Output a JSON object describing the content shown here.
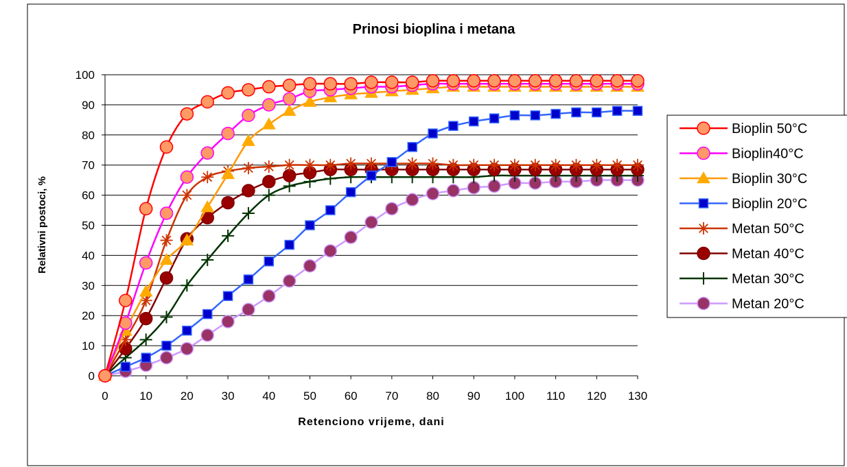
{
  "chart_data": {
    "type": "line",
    "title": "Prinosi bioplina i metana",
    "xlabel": "Retenciono vrijeme, dani",
    "ylabel": "Relativni postoci, %",
    "xlim": [
      0,
      130
    ],
    "ylim": [
      0,
      100
    ],
    "x_ticks": [
      "0",
      "10",
      "20",
      "30",
      "40",
      "50",
      "60",
      "70",
      "80",
      "90",
      "100",
      "110",
      "120",
      "130"
    ],
    "y_ticks": [
      "0",
      "10",
      "20",
      "30",
      "40",
      "50",
      "60",
      "70",
      "80",
      "90",
      "100"
    ],
    "grid": "horizontal",
    "legend_position": "right",
    "x": [
      0,
      5,
      10,
      15,
      20,
      25,
      30,
      35,
      40,
      45,
      50,
      55,
      60,
      65,
      70,
      75,
      80,
      85,
      90,
      95,
      100,
      105,
      110,
      115,
      120,
      125,
      130
    ],
    "series": [
      {
        "name": "Bioplin 50°C",
        "color": "#ff0000",
        "fill": "#ff9966",
        "marker": "circle",
        "values": [
          0,
          25,
          55.5,
          76,
          87,
          91,
          94,
          95,
          96,
          96.5,
          97,
          97,
          97,
          97.5,
          97.5,
          97.5,
          98,
          98,
          98,
          98,
          98,
          98,
          98,
          98,
          98,
          98,
          98
        ]
      },
      {
        "name": "Bioplin40°C",
        "color": "#ff00ff",
        "fill": "#ff9966",
        "marker": "circle",
        "values": [
          0,
          17.5,
          37.5,
          54,
          66,
          74,
          80.5,
          86.5,
          90,
          92,
          94.5,
          95,
          95.5,
          96,
          96,
          96.5,
          97,
          97,
          97,
          97,
          97,
          97,
          97,
          97,
          97,
          97,
          97
        ]
      },
      {
        "name": "Bioplin 30°C",
        "color": "#ff9900",
        "fill": "#ffaa00",
        "marker": "triangle",
        "values": [
          0,
          15,
          28,
          38.5,
          45,
          56,
          67,
          78,
          83.5,
          88,
          91,
          92.5,
          93.5,
          94,
          94.5,
          95,
          95.5,
          96,
          96,
          96,
          96,
          96,
          96,
          96,
          96,
          96,
          96
        ]
      },
      {
        "name": "Bioplin 20°C",
        "color": "#3366ff",
        "fill": "#0000cc",
        "marker": "square",
        "values": [
          0,
          3,
          6,
          10,
          15,
          20.5,
          26.5,
          32,
          38,
          43.5,
          50,
          55,
          61,
          66.5,
          71,
          76,
          80.5,
          83,
          84.5,
          85.5,
          86.5,
          86.5,
          87,
          87.5,
          87.5,
          88,
          88
        ]
      },
      {
        "name": "Metan 50°C",
        "color": "#cc3300",
        "fill": "#cc3300",
        "marker": "star",
        "values": [
          0,
          12,
          25,
          45,
          60,
          66,
          68,
          69,
          69.5,
          70,
          70,
          70,
          70.5,
          70.5,
          70.5,
          70.5,
          70.5,
          70,
          70,
          70,
          70,
          70,
          70,
          70,
          70,
          70,
          70
        ]
      },
      {
        "name": "Metan 40°C",
        "color": "#800000",
        "fill": "#990000",
        "marker": "circle",
        "values": [
          0,
          9,
          19,
          32.5,
          45.5,
          52.5,
          57.5,
          61.5,
          64.5,
          66.5,
          67.5,
          68.5,
          68.5,
          68.5,
          68.5,
          68.5,
          68.5,
          68.5,
          68.5,
          68.5,
          68.5,
          68.5,
          68.5,
          68.5,
          68.5,
          68.5,
          68.5
        ]
      },
      {
        "name": "Metan 30°C",
        "color": "#003300",
        "fill": "#003300",
        "marker": "plus",
        "values": [
          0,
          6,
          12,
          19.5,
          30,
          38.5,
          46.5,
          54,
          60,
          63,
          64.5,
          65.5,
          66,
          66,
          66,
          66,
          66,
          66,
          66,
          66.5,
          66.5,
          66.5,
          66.5,
          66.5,
          66.5,
          66.5,
          66.5
        ]
      },
      {
        "name": "Metan 20°C",
        "color": "#cc99ff",
        "fill": "#993366",
        "marker": "circle",
        "values": [
          0,
          1.5,
          3.5,
          6,
          9,
          13.5,
          18,
          22,
          26.5,
          31.5,
          36.5,
          41.5,
          46,
          51,
          55.5,
          58.5,
          60.5,
          61.5,
          62.5,
          63,
          64,
          64,
          64.5,
          64.5,
          65,
          65,
          65
        ]
      }
    ]
  }
}
